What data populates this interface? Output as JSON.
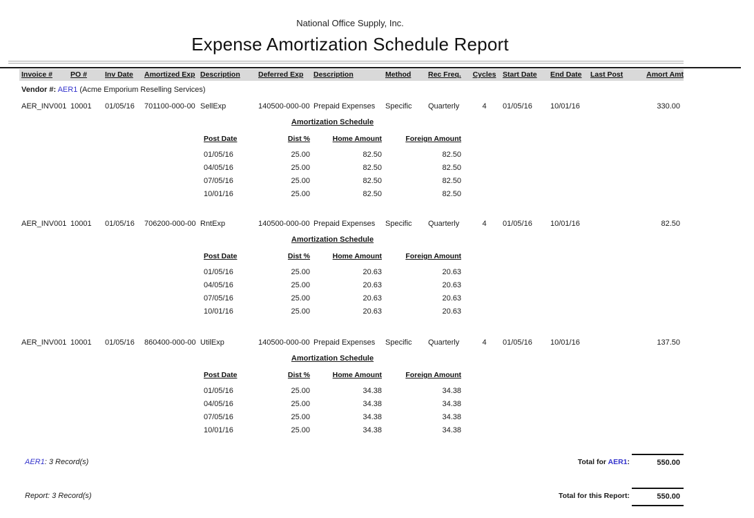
{
  "report": {
    "company": "National Office Supply, Inc.",
    "title": "Expense Amortization Schedule Report"
  },
  "columns": {
    "invoice": "Invoice #",
    "po": "PO #",
    "inv_date": "Inv Date",
    "amortized_exp": "Amortized Exp",
    "description_amortized": "Description",
    "deferred_exp": "Deferred Exp",
    "description_deferred": "Description",
    "method": "Method",
    "rec_freq": "Rec Freq.",
    "cycles": "Cycles",
    "start_date": "Start Date",
    "end_date": "End Date",
    "last_post": "Last Post",
    "amort_amt": "Amort Amt"
  },
  "vendor": {
    "label": "Vendor #:",
    "code": "AER1",
    "name": "(Acme Emporium Reselling Services)"
  },
  "schedule": {
    "title": "Amortization Schedule",
    "columns": {
      "post_date": "Post Date",
      "dist_pct": "Dist %",
      "home_amount": "Home Amount",
      "foreign_amount": "Foreign Amount"
    }
  },
  "records": [
    {
      "invoice": "AER_INV001",
      "po": "10001",
      "inv_date": "01/05/16",
      "amortized_exp": "701100-000-00",
      "description_amortized": "SellExp",
      "deferred_exp": "140500-000-00",
      "description_deferred": "Prepaid Expenses",
      "method": "Specific",
      "rec_freq": "Quarterly",
      "cycles": "4",
      "start_date": "01/05/16",
      "end_date": "10/01/16",
      "last_post": "",
      "amort_amt": "330.00",
      "schedule_rows": [
        {
          "post_date": "01/05/16",
          "dist_pct": "25.00",
          "home_amount": "82.50",
          "foreign_amount": "82.50"
        },
        {
          "post_date": "04/05/16",
          "dist_pct": "25.00",
          "home_amount": "82.50",
          "foreign_amount": "82.50"
        },
        {
          "post_date": "07/05/16",
          "dist_pct": "25.00",
          "home_amount": "82.50",
          "foreign_amount": "82.50"
        },
        {
          "post_date": "10/01/16",
          "dist_pct": "25.00",
          "home_amount": "82.50",
          "foreign_amount": "82.50"
        }
      ]
    },
    {
      "invoice": "AER_INV001",
      "po": "10001",
      "inv_date": "01/05/16",
      "amortized_exp": "706200-000-00",
      "description_amortized": "RntExp",
      "deferred_exp": "140500-000-00",
      "description_deferred": "Prepaid Expenses",
      "method": "Specific",
      "rec_freq": "Quarterly",
      "cycles": "4",
      "start_date": "01/05/16",
      "end_date": "10/01/16",
      "last_post": "",
      "amort_amt": "82.50",
      "schedule_rows": [
        {
          "post_date": "01/05/16",
          "dist_pct": "25.00",
          "home_amount": "20.63",
          "foreign_amount": "20.63"
        },
        {
          "post_date": "04/05/16",
          "dist_pct": "25.00",
          "home_amount": "20.63",
          "foreign_amount": "20.63"
        },
        {
          "post_date": "07/05/16",
          "dist_pct": "25.00",
          "home_amount": "20.63",
          "foreign_amount": "20.63"
        },
        {
          "post_date": "10/01/16",
          "dist_pct": "25.00",
          "home_amount": "20.63",
          "foreign_amount": "20.63"
        }
      ]
    },
    {
      "invoice": "AER_INV001",
      "po": "10001",
      "inv_date": "01/05/16",
      "amortized_exp": "860400-000-00",
      "description_amortized": "UtilExp",
      "deferred_exp": "140500-000-00",
      "description_deferred": "Prepaid Expenses",
      "method": "Specific",
      "rec_freq": "Quarterly",
      "cycles": "4",
      "start_date": "01/05/16",
      "end_date": "10/01/16",
      "last_post": "",
      "amort_amt": "137.50",
      "schedule_rows": [
        {
          "post_date": "01/05/16",
          "dist_pct": "25.00",
          "home_amount": "34.38",
          "foreign_amount": "34.38"
        },
        {
          "post_date": "04/05/16",
          "dist_pct": "25.00",
          "home_amount": "34.38",
          "foreign_amount": "34.38"
        },
        {
          "post_date": "07/05/16",
          "dist_pct": "25.00",
          "home_amount": "34.38",
          "foreign_amount": "34.38"
        },
        {
          "post_date": "10/01/16",
          "dist_pct": "25.00",
          "home_amount": "34.38",
          "foreign_amount": "34.38"
        }
      ]
    }
  ],
  "summary": {
    "vendor_count": {
      "code": "AER1",
      "text": ": 3 Record(s)"
    },
    "vendor_total": {
      "prefix": "Total for ",
      "code": "AER1",
      "suffix": ":",
      "amount": "550.00"
    },
    "report_count": "Report: 3 Record(s)",
    "report_total": {
      "label": "Total for this Report:",
      "amount": "550.00"
    }
  },
  "colors": {
    "link_blue": "#3333cc",
    "header_band_gray": "#d9d9d9",
    "rule_black": "#1a1a1a",
    "rule_gray": "#a8a8a8"
  }
}
